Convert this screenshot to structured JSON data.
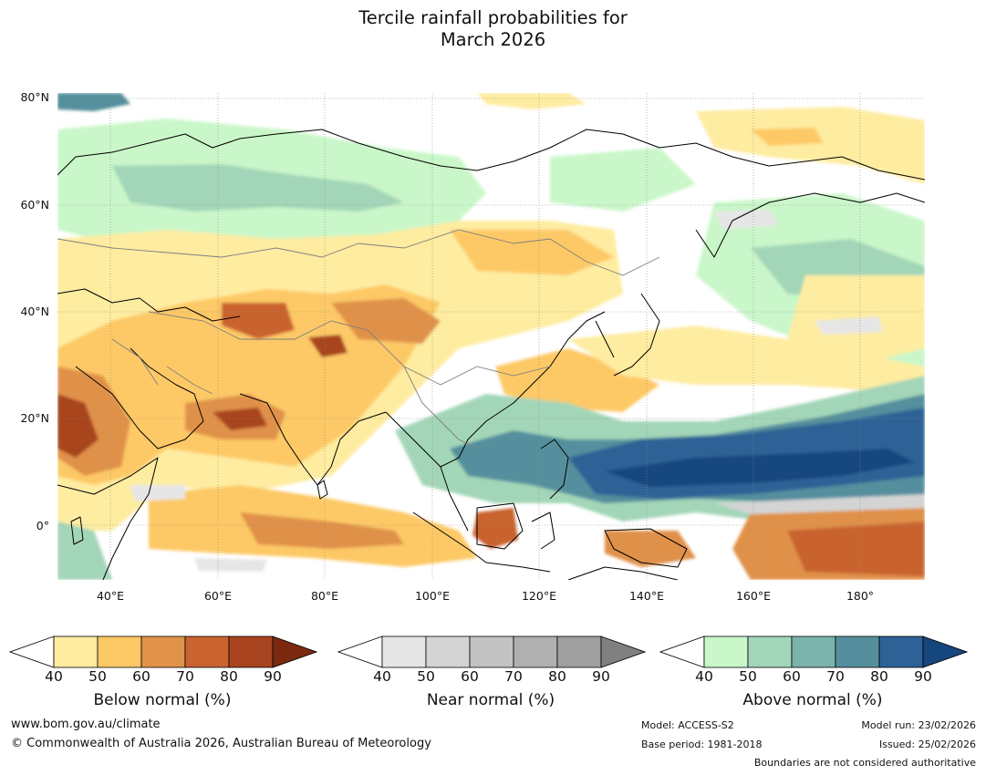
{
  "title_line1": "Tercile rainfall probabilities for",
  "title_line2": "March 2026",
  "map": {
    "lat_labels": [
      "80°N",
      "60°N",
      "40°N",
      "20°N",
      "0°"
    ],
    "lon_labels": [
      "40°E",
      "60°E",
      "80°E",
      "100°E",
      "120°E",
      "140°E",
      "160°E",
      "180°"
    ]
  },
  "legend": {
    "below": {
      "title": "Below normal (%)",
      "ticks": [
        "40",
        "50",
        "60",
        "70",
        "80",
        "90"
      ],
      "colors": [
        "#ffffff",
        "#feeca0",
        "#fdc966",
        "#e0914a",
        "#c9632f",
        "#a8441f",
        "#7b2810"
      ]
    },
    "near": {
      "title": "Near normal (%)",
      "ticks": [
        "40",
        "50",
        "60",
        "70",
        "80",
        "90"
      ],
      "colors": [
        "#ffffff",
        "#e6e6e6",
        "#d4d4d4",
        "#c2c2c2",
        "#b0b0b0",
        "#a0a0a0",
        "#808080"
      ]
    },
    "above": {
      "title": "Above normal (%)",
      "ticks": [
        "40",
        "50",
        "60",
        "70",
        "80",
        "90"
      ],
      "colors": [
        "#ffffff",
        "#c9f7c9",
        "#a3d6b8",
        "#7ab3a9",
        "#558f9d",
        "#2e6296",
        "#16467e"
      ]
    }
  },
  "footer": {
    "url": "www.bom.gov.au/climate",
    "copyright": "© Commonwealth of Australia 2026, Australian Bureau of Meteorology",
    "model": "Model: ACCESS-S2",
    "base_period": "Base period: 1981-2018",
    "model_run": "Model run: 23/02/2026",
    "issued": "Issued: 25/02/2026",
    "disclaimer": "Boundaries are not considered authoritative"
  }
}
